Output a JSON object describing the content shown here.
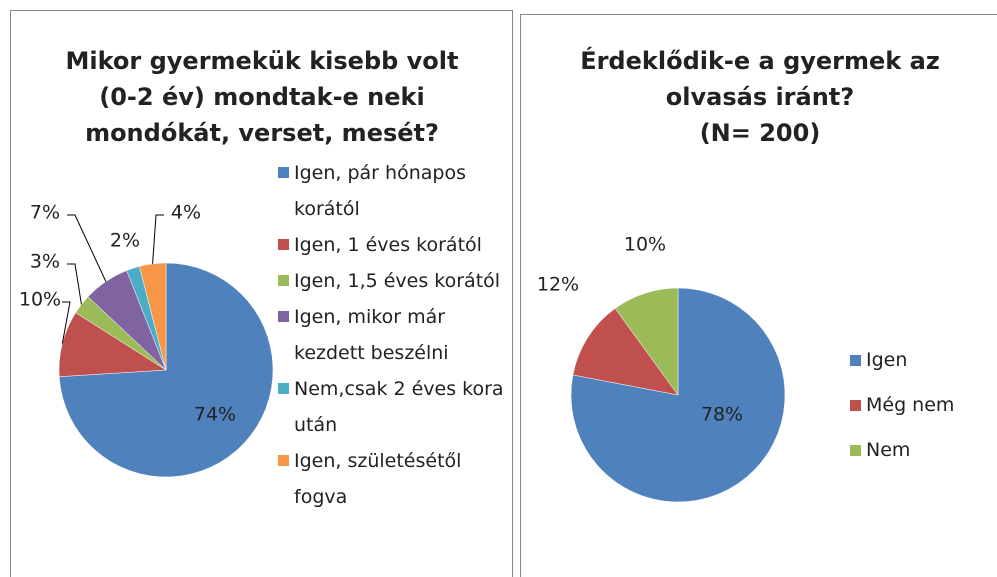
{
  "chart_data": [
    {
      "type": "pie",
      "title": [
        "Mikor gyermekük kisebb volt",
        "(0-2 év) mondtak-e neki",
        "mondókát, verset, mesét?"
      ],
      "categories": [
        "Igen, pár hónapos korától",
        "Igen, 1 éves korától",
        "Igen, 1,5 éves korától",
        "Igen, mikor már kezdett beszélni",
        "Nem,csak 2 éves kora után",
        "Igen, születésétől fogva"
      ],
      "values": [
        74,
        10,
        3,
        7,
        2,
        4
      ],
      "value_labels": [
        "74%",
        "10%",
        "3%",
        "7%",
        "2%",
        "4%"
      ],
      "colors": [
        "#4f81bd",
        "#c0504d",
        "#9bbb59",
        "#8064a2",
        "#4bacc6",
        "#f79646"
      ],
      "legend": "right"
    },
    {
      "type": "pie",
      "title": [
        "Érdeklődik-e a gyermek az",
        "olvasás iránt?",
        "(N= 200)"
      ],
      "categories": [
        "Igen",
        "Még nem",
        "Nem"
      ],
      "values": [
        78,
        12,
        10
      ],
      "value_labels": [
        "78%",
        "12%",
        "10%"
      ],
      "colors": [
        "#4f81bd",
        "#c0504d",
        "#9bbb59"
      ],
      "legend": "right"
    }
  ]
}
